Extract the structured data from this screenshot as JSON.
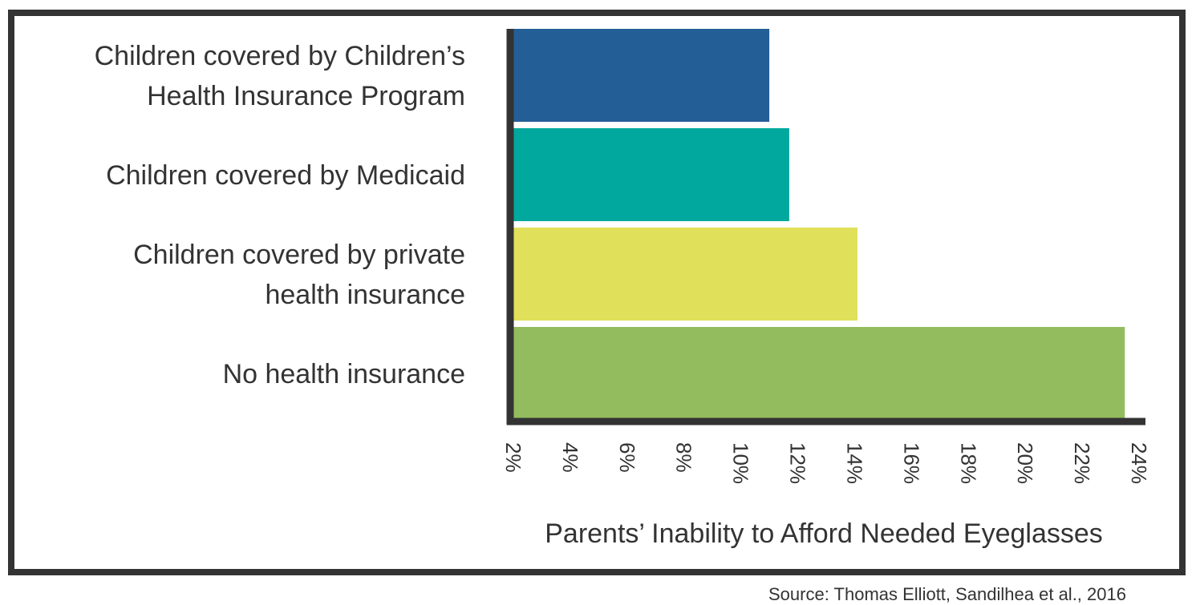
{
  "chart_data": {
    "type": "bar",
    "orientation": "horizontal",
    "categories": [
      [
        "Children covered by Children’s",
        "Health Insurance Program"
      ],
      [
        "Children covered by Medicaid"
      ],
      [
        "Children covered by private",
        "health insurance"
      ],
      [
        "No health insurance"
      ]
    ],
    "values": [
      11.0,
      11.7,
      14.1,
      23.5
    ],
    "colors": [
      "#245e96",
      "#00a89d",
      "#e0e05a",
      "#93bc5e"
    ],
    "xlim": [
      2,
      24
    ],
    "xticks": [
      "2%",
      "4%",
      "6%",
      "8%",
      "10%",
      "12%",
      "14%",
      "16%",
      "18%",
      "20%",
      "22%",
      "24%"
    ],
    "xlabel": "Parents’ Inability to Afford Needed Eyeglasses",
    "ylabel": "",
    "grid": false,
    "legend": "none"
  },
  "source": "Source: Thomas Elliott, Sandilhea et al., 2016"
}
